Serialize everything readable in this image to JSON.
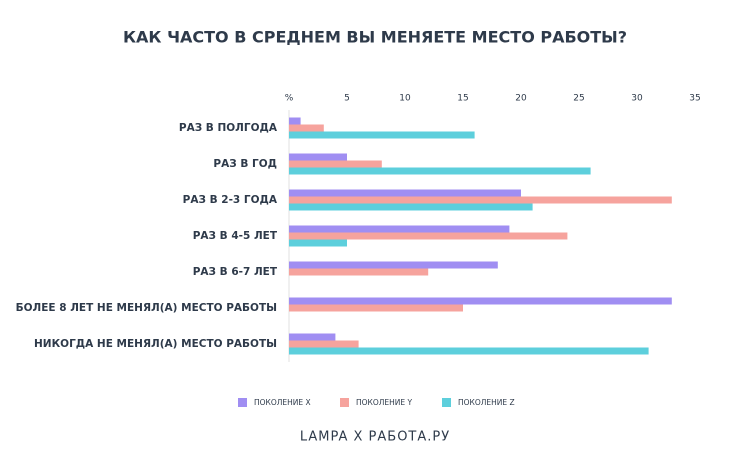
{
  "chart_data": {
    "type": "hbar",
    "title": "КАК ЧАСТО В СРЕДНЕМ ВЫ МЕНЯЕТЕ МЕСТО РАБОТЫ?",
    "categories": [
      "РАЗ В ПОЛГОДА",
      "РАЗ В ГОД",
      "РАЗ В 2-3 ГОДА",
      "РАЗ В 4-5 ЛЕТ",
      "РАЗ В 6-7 ЛЕТ",
      "БОЛЕЕ 8 ЛЕТ НЕ МЕНЯЛ(А) МЕСТО РАБОТЫ",
      "НИКОГДА НЕ МЕНЯЛ(А) МЕСТО РАБОТЫ"
    ],
    "series": [
      {
        "name": "ПОКОЛЕНИЕ X",
        "color": "#a08ef2",
        "values": [
          1,
          5,
          20,
          19,
          18,
          33,
          4
        ]
      },
      {
        "name": "ПОКОЛЕНИЕ Y",
        "color": "#f6a39d",
        "values": [
          3,
          8,
          33,
          24,
          12,
          15,
          6
        ]
      },
      {
        "name": "ПОКОЛЕНИЕ Z",
        "color": "#5dcfdc",
        "values": [
          16,
          26,
          21,
          5,
          null,
          null,
          31
        ]
      }
    ],
    "xlim": [
      0,
      35
    ],
    "xticks": [
      {
        "value": 0,
        "label": "%"
      },
      5,
      10,
      15,
      20,
      25,
      30,
      35
    ],
    "grid": false,
    "source": "LAMPA X РАБОТА.РУ"
  }
}
